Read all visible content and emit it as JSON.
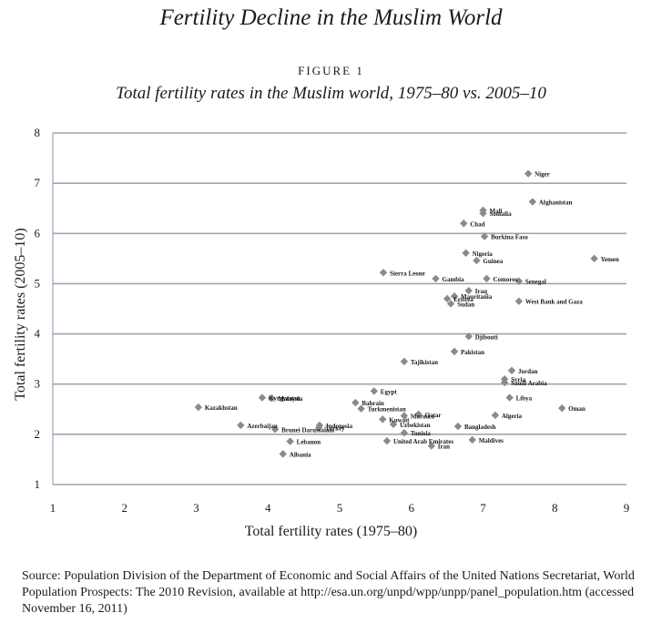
{
  "header": {
    "title": "Fertility Decline in the Muslim World",
    "figure_label": "FIGURE 1",
    "caption": "Total fertility rates in the Muslim world, 1975–80 vs. 2005–10"
  },
  "source_note": "Source: Population Division of the Department of Economic and Social Affairs of the United Nations Secretariat, World Population Prospects: The 2010 Revision, available at http://esa.un.org/unpd/wpp/unpp/panel_population.htm (accessed November 16, 2011)",
  "colors": {
    "grid": "#9aa7b4",
    "point": "#8a8a8a",
    "text": "#1a1a1a"
  },
  "chart_data": {
    "type": "scatter",
    "title": "Total fertility rates in the Muslim world, 1975–80 vs. 2005–10",
    "xlabel": "Total fertility rates (1975–80)",
    "ylabel": "Total fertility rates (2005–10)",
    "xlim": [
      1,
      9
    ],
    "ylim": [
      1,
      8
    ],
    "xticks": [
      1,
      2,
      3,
      4,
      5,
      6,
      7,
      8,
      9
    ],
    "yticks": [
      1,
      2,
      3,
      4,
      5,
      6,
      7,
      8
    ],
    "grid": "horizontal",
    "points": [
      {
        "label": "Niger",
        "x": 7.63,
        "y": 7.19
      },
      {
        "label": "Afghanistan",
        "x": 7.69,
        "y": 6.63
      },
      {
        "label": "Mali",
        "x": 7.0,
        "y": 6.46
      },
      {
        "label": "Somalia",
        "x": 7.0,
        "y": 6.4
      },
      {
        "label": "Chad",
        "x": 6.73,
        "y": 6.2
      },
      {
        "label": "Burkina Faso",
        "x": 7.02,
        "y": 5.94
      },
      {
        "label": "Nigeria",
        "x": 6.76,
        "y": 5.61
      },
      {
        "label": "Guinea",
        "x": 6.91,
        "y": 5.46
      },
      {
        "label": "Sierra Leone",
        "x": 5.61,
        "y": 5.22
      },
      {
        "label": "Gambia",
        "x": 6.34,
        "y": 5.1
      },
      {
        "label": "Comoros",
        "x": 7.05,
        "y": 5.1
      },
      {
        "label": "Senegal",
        "x": 7.5,
        "y": 5.05
      },
      {
        "label": "Yemen",
        "x": 8.55,
        "y": 5.5
      },
      {
        "label": "Iraq",
        "x": 6.8,
        "y": 4.86
      },
      {
        "label": "Eritrea",
        "x": 6.5,
        "y": 4.7
      },
      {
        "label": "Mauritania",
        "x": 6.6,
        "y": 4.75
      },
      {
        "label": "West Bank and Gaza",
        "x": 7.5,
        "y": 4.65
      },
      {
        "label": "Sudan",
        "x": 6.55,
        "y": 4.6
      },
      {
        "label": "Djibouti",
        "x": 6.8,
        "y": 3.95
      },
      {
        "label": "Pakistan",
        "x": 6.6,
        "y": 3.65
      },
      {
        "label": "Tajikistan",
        "x": 5.9,
        "y": 3.45
      },
      {
        "label": "Jordan",
        "x": 7.4,
        "y": 3.27
      },
      {
        "label": "Syria",
        "x": 7.3,
        "y": 3.1
      },
      {
        "label": "Saudi Arabia",
        "x": 7.3,
        "y": 3.03
      },
      {
        "label": "Kyrgyzstan",
        "x": 3.92,
        "y": 2.73
      },
      {
        "label": "Malaysia",
        "x": 4.05,
        "y": 2.72
      },
      {
        "label": "Kazakhstan",
        "x": 3.03,
        "y": 2.54
      },
      {
        "label": "Egypt",
        "x": 5.48,
        "y": 2.86
      },
      {
        "label": "Libya",
        "x": 7.37,
        "y": 2.73
      },
      {
        "label": "Bahrain",
        "x": 5.22,
        "y": 2.63
      },
      {
        "label": "Turkmenistan",
        "x": 5.3,
        "y": 2.51
      },
      {
        "label": "Morocco",
        "x": 5.9,
        "y": 2.37
      },
      {
        "label": "Oman",
        "x": 8.1,
        "y": 2.52
      },
      {
        "label": "Algeria",
        "x": 7.17,
        "y": 2.38
      },
      {
        "label": "Qatar",
        "x": 6.1,
        "y": 2.4
      },
      {
        "label": "Kuwait",
        "x": 5.6,
        "y": 2.3
      },
      {
        "label": "Uzbekistan",
        "x": 5.75,
        "y": 2.2
      },
      {
        "label": "Azerbaijan",
        "x": 3.62,
        "y": 2.18
      },
      {
        "label": "Brunei Darussalam",
        "x": 4.1,
        "y": 2.1
      },
      {
        "label": "Indonesia",
        "x": 4.72,
        "y": 2.18
      },
      {
        "label": "Turkey",
        "x": 4.71,
        "y": 2.13
      },
      {
        "label": "Bangladesh",
        "x": 6.65,
        "y": 2.16
      },
      {
        "label": "Tunisia",
        "x": 5.9,
        "y": 2.03
      },
      {
        "label": "Maldives",
        "x": 6.85,
        "y": 1.89
      },
      {
        "label": "Lebanon",
        "x": 4.31,
        "y": 1.86
      },
      {
        "label": "Iran",
        "x": 6.28,
        "y": 1.77
      },
      {
        "label": "Albania",
        "x": 4.21,
        "y": 1.61
      },
      {
        "label": "United Arab Emirates",
        "x": 5.66,
        "y": 1.87
      }
    ]
  }
}
